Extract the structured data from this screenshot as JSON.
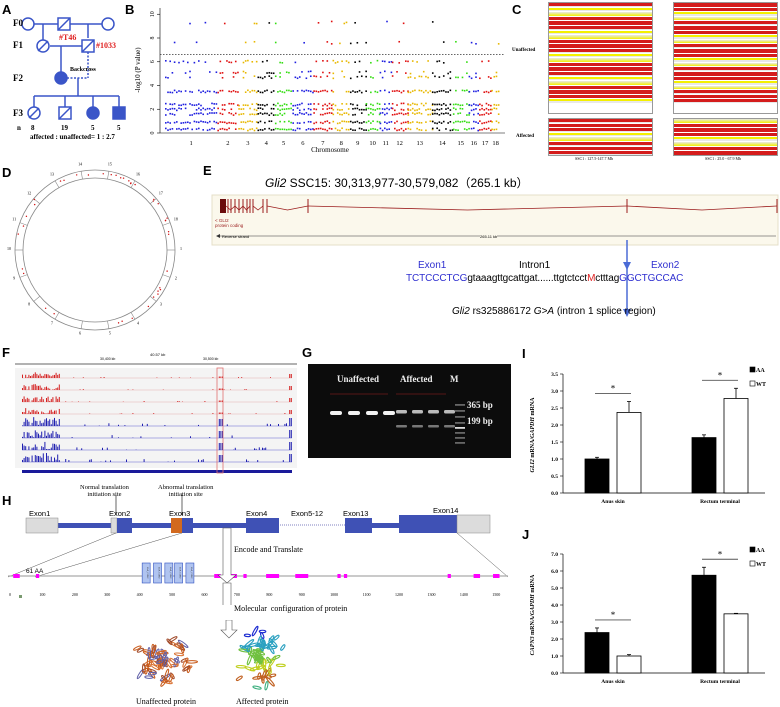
{
  "panels": {
    "A": "A",
    "B": "B",
    "C": "C",
    "D": "D",
    "E": "E",
    "F": "F",
    "G": "G",
    "H": "H",
    "I": "I",
    "J": "J"
  },
  "pedigree": {
    "generations": [
      "F0",
      "F1",
      "F2",
      "F3"
    ],
    "ids": [
      "#T46",
      "#1033"
    ],
    "backcross": "Backcross",
    "n_label": "n",
    "counts": [
      "8",
      "19",
      "5",
      "5"
    ],
    "ratio": "affected : unaffected= 1 : 2.7",
    "colors": {
      "line": "#3a55c8",
      "id": "#e02020"
    }
  },
  "haplotype": {
    "unaffected": "Unaffected",
    "affected": "Affected",
    "left_region": "SSC1 : 127.5-147.7 Mb",
    "right_region": "SSC1 : 25.0 - 67.9 Mb",
    "colors": {
      "homo": "#d41c1c",
      "het": "#f4f000",
      "other": "#e8e8e8"
    }
  },
  "gene": {
    "title_gene": "Gli2",
    "title_rest": " SSC15: 30,313,977-30,579,082（265.1 kb）",
    "track_label1": "< GLI2",
    "track_label2": "protein coding",
    "strand": "Reverse strand",
    "length": "265.11 kb",
    "exon1": "Exon1",
    "intron1": "Intron1",
    "exon2": "Exon2",
    "seq_exon1": "TCTCCCTCG",
    "seq_intron_a": "gtaaagttgcattgat......ttgtctcct",
    "seq_mut": "M",
    "seq_intron_b": "ctttag",
    "seq_exon2": "GGCTGCCAC",
    "variant_gene": "Gli2",
    "variant_id": " rs325886172 ",
    "variant_change": "G>A",
    "variant_note": " (intron 1 splice region)",
    "colors": {
      "exon": "#2f2fd0",
      "mut": "#e02020",
      "track": "#9b1c1c",
      "arrow": "#4a6bd6"
    }
  },
  "igv": {
    "span": "40.57 kb",
    "ticks": [
      "30,400 kb",
      "30,500 kb"
    ]
  },
  "gel": {
    "unaffected": "Unaffected",
    "affected": "Affected",
    "marker": "M",
    "band1": "365 bp",
    "band2": "199 bp"
  },
  "structure": {
    "normal_site": "Normal translation initiation site",
    "abnormal_site": "Abnormal translation initiation site",
    "normal_l1": "Normal translation",
    "normal_l2": "initiation site",
    "abnormal_l1": "Abnormal translation",
    "abnormal_l2": "initiation site",
    "exons": [
      "Exon1",
      "Exon2",
      "Exon3",
      "Exon4",
      "Exon5-12",
      "Exon13",
      "Exon14"
    ],
    "aa_label": "61 AA",
    "domain_label": "ZnF_C2H2",
    "axis_ticks": [
      "0",
      "100",
      "200",
      "300",
      "400",
      "500",
      "600",
      "700",
      "800",
      "900",
      "1000",
      "1100",
      "1200",
      "1300",
      "1400",
      "1500"
    ],
    "encode": "Encode and Translate",
    "molecular": "Molecular  configuration of protein",
    "unaffected_protein": "Unaffected protein",
    "affected_protein": "Affected protein",
    "colors": {
      "exon": "#3f51b5",
      "utr": "#dcdcdc",
      "mutant": "#d2691e",
      "domain": "#ff00ff"
    }
  },
  "chart_data": [
    {
      "id": "B",
      "type": "scatter",
      "xlabel": "Chromosome",
      "ylabel": "-log10 (P value)",
      "ylim": [
        0,
        10
      ],
      "yticks": [
        "0",
        "2",
        "4",
        "6",
        "8",
        "10"
      ],
      "categories": [
        "1",
        "2",
        "3",
        "4",
        "5",
        "6",
        "7",
        "8",
        "9",
        "10",
        "11",
        "12",
        "13",
        "14",
        "15",
        "16",
        "17",
        "18"
      ],
      "threshold": 6.6,
      "grid": false,
      "colors": [
        "#1f1fe0",
        "#e01010",
        "#e8b800",
        "#000000",
        "#33dd11"
      ]
    },
    {
      "id": "I",
      "type": "bar",
      "ylabel_gene": "GLI2",
      "ylabel_mid": " mRNA/",
      "ylabel_ref": "GAPDH",
      "ylabel_end": " mRNA",
      "categories": [
        "Anus skin",
        "Rectum terminal"
      ],
      "ylim": [
        0,
        3.5
      ],
      "yticks": [
        "0.0",
        "0.5",
        "1.0",
        "1.5",
        "2.0",
        "2.5",
        "3.0",
        "3.5"
      ],
      "series": [
        {
          "name": "AA",
          "values": [
            1.0,
            1.63
          ],
          "errors": [
            0.05,
            0.08
          ],
          "color": "#000000"
        },
        {
          "name": "WT",
          "values": [
            2.37,
            2.78
          ],
          "errors": [
            0.32,
            0.3
          ],
          "color": "#ffffff"
        }
      ],
      "significance": [
        "*",
        "*"
      ],
      "legend": "top-right"
    },
    {
      "id": "J",
      "type": "bar",
      "ylabel_gene": "CAPN3",
      "ylabel_mid": " mRNA/",
      "ylabel_ref": "GAPDH",
      "ylabel_end": " mRNA",
      "categories": [
        "Anus skin",
        "Rectum terminal"
      ],
      "ylim": [
        0,
        7
      ],
      "yticks": [
        "0.0",
        "1.0",
        "2.0",
        "3.0",
        "4.0",
        "5.0",
        "6.0",
        "7.0"
      ],
      "series": [
        {
          "name": "AA",
          "values": [
            2.38,
            5.75
          ],
          "errors": [
            0.27,
            0.47
          ],
          "color": "#000000"
        },
        {
          "name": "WT",
          "values": [
            1.0,
            3.48
          ],
          "errors": [
            0.08,
            0.03
          ],
          "color": "#ffffff"
        }
      ],
      "significance": [
        "*",
        "*"
      ],
      "legend": "top-right"
    }
  ]
}
